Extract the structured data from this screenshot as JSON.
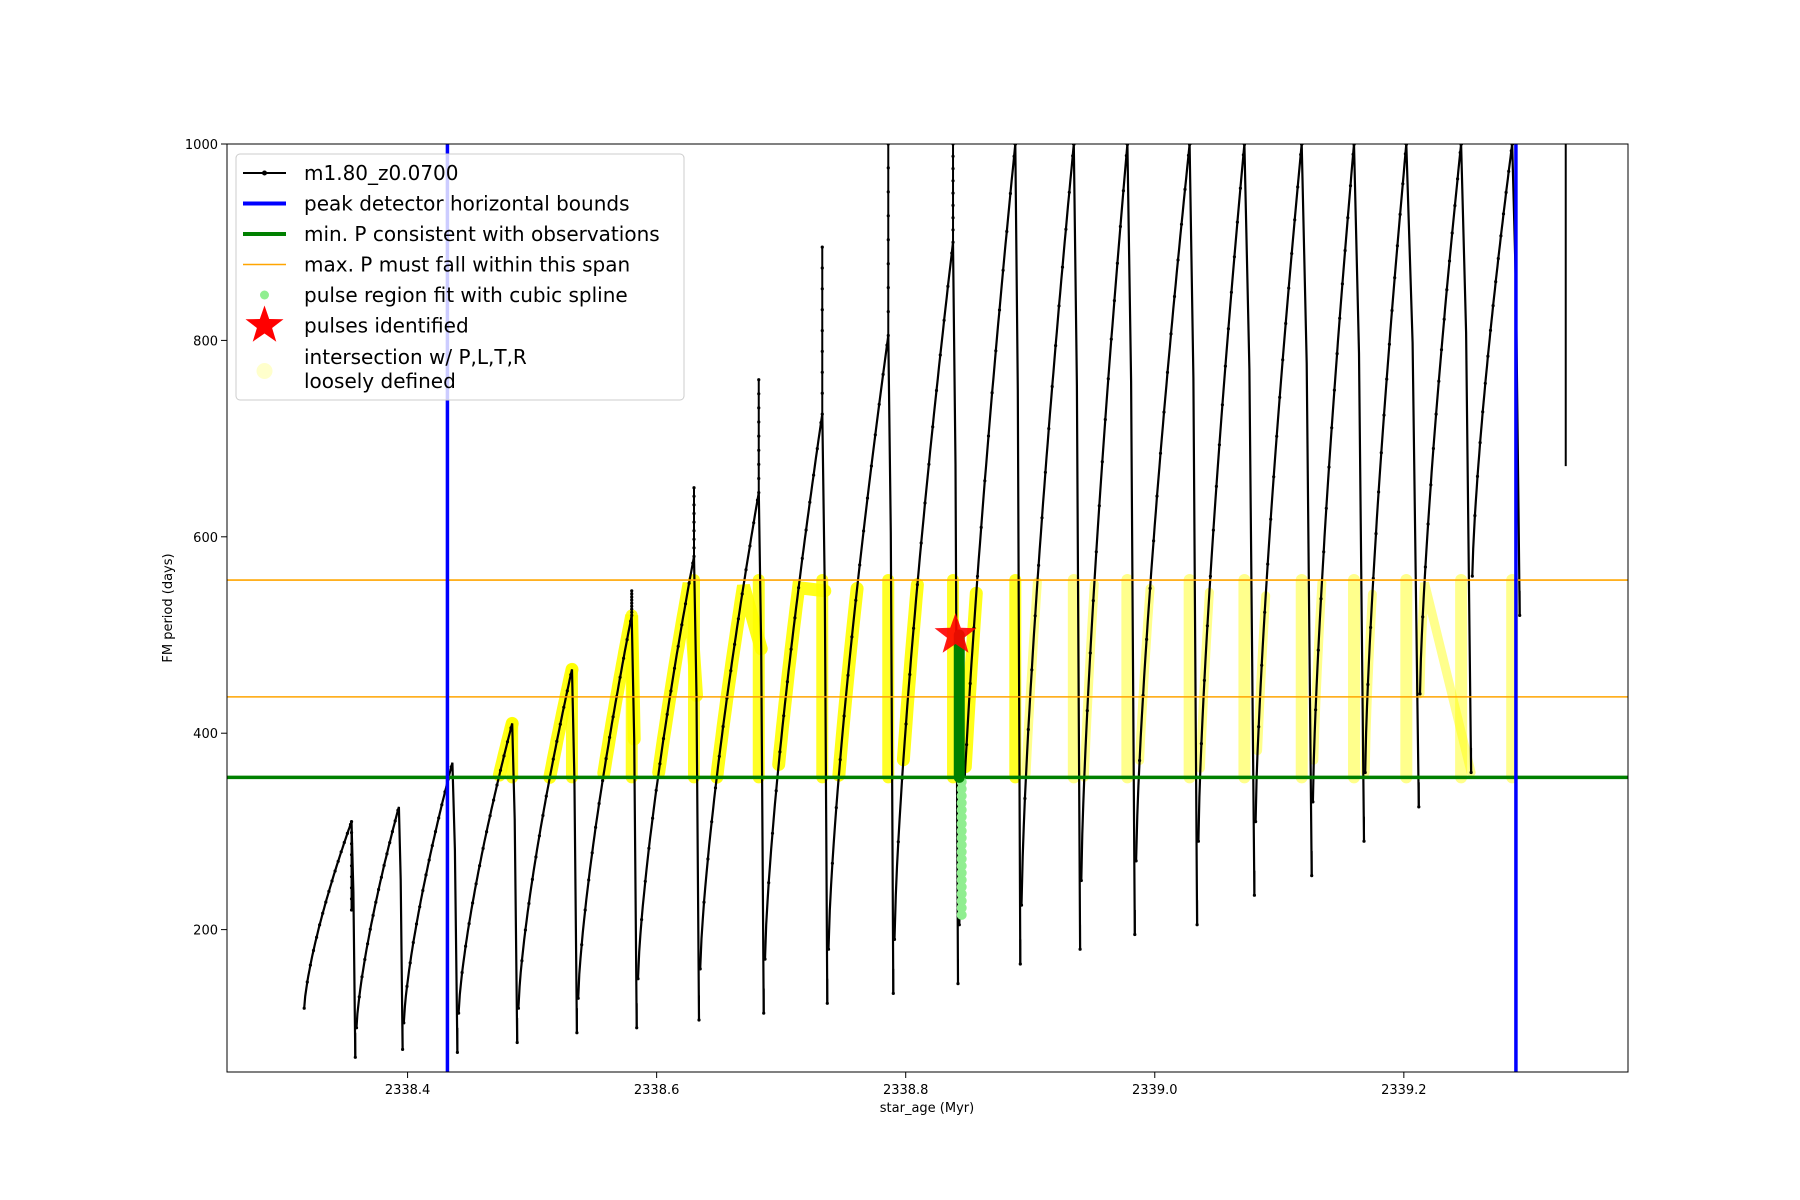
{
  "chart_data": {
    "type": "line",
    "xlabel": "star_age (Myr)",
    "ylabel": "FM period (days)",
    "xlim": [
      2338.255,
      2339.38
    ],
    "ylim": [
      55,
      1000
    ],
    "x_ticks": [
      2338.4,
      2338.6,
      2338.8,
      2339.0,
      2339.2
    ],
    "x_tick_labels": [
      "2338.4",
      "2338.6",
      "2338.8",
      "2339.0",
      "2339.2"
    ],
    "y_ticks": [
      200,
      400,
      600,
      800,
      1000
    ],
    "y_tick_labels": [
      "200",
      "400",
      "600",
      "800",
      "1000"
    ],
    "grid": false,
    "legend_placement": "top-left",
    "colors": {
      "model_track": "#000000",
      "peak_bounds": "#0000ff",
      "min_period": "#008000",
      "max_period_span": "#ffa500",
      "spline_fit": "#90ee90",
      "pulse_star": "#ff0000",
      "intersection": "#ffff00"
    },
    "legend": [
      {
        "label": "m1.80_z0.0700",
        "style": "line-marker",
        "color": "#000000"
      },
      {
        "label": "peak detector horizontal bounds",
        "style": "line-thick",
        "color": "#0000ff"
      },
      {
        "label": "min. P consistent with observations",
        "style": "line-thick",
        "color": "#008000"
      },
      {
        "label": "max. P must fall within this span",
        "style": "line-thin",
        "color": "#ffa500"
      },
      {
        "label": "pulse region fit with cubic spline",
        "style": "dot",
        "color": "#90ee90"
      },
      {
        "label": "pulses identified",
        "style": "star",
        "color": "#ff0000"
      },
      {
        "label_lines": [
          "intersection w/ P,L,T,R",
          "loosely defined"
        ],
        "style": "faint-dot",
        "color": "#ffffcc"
      }
    ],
    "vertical_lines": [
      {
        "name": "peak detector horizontal bounds",
        "x": 2338.432
      },
      {
        "name": "peak detector horizontal bounds",
        "x": 2339.29
      }
    ],
    "horizontal_lines": [
      {
        "name": "min. P consistent with observations",
        "y": 355
      },
      {
        "name": "max. P must fall within this span",
        "y": 437
      },
      {
        "name": "max. P must fall within this span",
        "y": 556
      }
    ],
    "series": [
      {
        "name": "m1.80_z0.0700",
        "cycles": [
          {
            "x_start": 2338.317,
            "x_peak": 2338.355,
            "x_end": 2338.358,
            "y_start": 120,
            "y_peak": 310,
            "y_min": 70,
            "y_spike": 220
          },
          {
            "x_start": 2338.359,
            "x_peak": 2338.393,
            "x_end": 2338.396,
            "y_start": 100,
            "y_peak": 325,
            "y_min": 78,
            "y_spike": null
          },
          {
            "x_start": 2338.397,
            "x_peak": 2338.436,
            "x_end": 2338.44,
            "y_start": 105,
            "y_peak": 370,
            "y_min": 75,
            "y_spike": null
          },
          {
            "x_start": 2338.441,
            "x_peak": 2338.484,
            "x_end": 2338.488,
            "y_start": 115,
            "y_peak": 410,
            "y_min": 85,
            "y_spike": null
          },
          {
            "x_start": 2338.489,
            "x_peak": 2338.532,
            "x_end": 2338.536,
            "y_start": 120,
            "y_peak": 465,
            "y_min": 95,
            "y_spike": null
          },
          {
            "x_start": 2338.537,
            "x_peak": 2338.58,
            "x_end": 2338.584,
            "y_start": 130,
            "y_peak": 520,
            "y_min": 100,
            "y_spike": 545
          },
          {
            "x_start": 2338.585,
            "x_peak": 2338.63,
            "x_end": 2338.634,
            "y_start": 150,
            "y_peak": 580,
            "y_min": 108,
            "y_spike": 650
          },
          {
            "x_start": 2338.635,
            "x_peak": 2338.682,
            "x_end": 2338.686,
            "y_start": 160,
            "y_peak": 645,
            "y_min": 115,
            "y_spike": 760
          },
          {
            "x_start": 2338.687,
            "x_peak": 2338.733,
            "x_end": 2338.737,
            "y_start": 170,
            "y_peak": 725,
            "y_min": 125,
            "y_spike": 895
          },
          {
            "x_start": 2338.738,
            "x_peak": 2338.786,
            "x_end": 2338.79,
            "y_start": 180,
            "y_peak": 805,
            "y_min": 135,
            "y_spike": 1000
          },
          {
            "x_start": 2338.791,
            "x_peak": 2338.838,
            "x_end": 2338.842,
            "y_start": 190,
            "y_peak": 900,
            "y_min": 145,
            "y_spike": 1000
          },
          {
            "x_start": 2338.843,
            "x_peak": 2338.888,
            "x_end": 2338.892,
            "y_start": 205,
            "y_peak": 1000,
            "y_min": 165,
            "y_spike": 1000
          },
          {
            "x_start": 2338.893,
            "x_peak": 2338.935,
            "x_end": 2338.94,
            "y_start": 225,
            "y_peak": 1000,
            "y_min": 180,
            "y_spike": 1000
          },
          {
            "x_start": 2338.941,
            "x_peak": 2338.978,
            "x_end": 2338.984,
            "y_start": 250,
            "y_peak": 1000,
            "y_min": 195,
            "y_spike": 1000
          },
          {
            "x_start": 2338.985,
            "x_peak": 2339.028,
            "x_end": 2339.034,
            "y_start": 270,
            "y_peak": 1000,
            "y_min": 205,
            "y_spike": 1000
          },
          {
            "x_start": 2339.035,
            "x_peak": 2339.072,
            "x_end": 2339.08,
            "y_start": 290,
            "y_peak": 1000,
            "y_min": 235,
            "y_spike": 1000
          },
          {
            "x_start": 2339.081,
            "x_peak": 2339.118,
            "x_end": 2339.126,
            "y_start": 310,
            "y_peak": 1000,
            "y_min": 255,
            "y_spike": 1000
          },
          {
            "x_start": 2339.127,
            "x_peak": 2339.16,
            "x_end": 2339.168,
            "y_start": 330,
            "y_peak": 1000,
            "y_min": 290,
            "y_spike": 1000
          },
          {
            "x_start": 2339.169,
            "x_peak": 2339.202,
            "x_end": 2339.212,
            "y_start": 360,
            "y_peak": 1000,
            "y_min": 325,
            "y_spike": 1000
          },
          {
            "x_start": 2339.213,
            "x_peak": 2339.246,
            "x_end": 2339.254,
            "y_start": 440,
            "y_peak": 1000,
            "y_min": 360,
            "y_spike": 1000
          },
          {
            "x_start": 2339.255,
            "x_peak": 2339.287,
            "x_end": 2339.293,
            "y_start": 560,
            "y_peak": 1000,
            "y_min": 520,
            "y_spike": 1000
          }
        ],
        "tail": {
          "x": 2339.33,
          "y_min": 672,
          "y_max": 1000
        }
      }
    ],
    "spline_fit": {
      "x": 2338.843,
      "y_min": 215,
      "y_max": 500
    },
    "pulses_identified": [
      {
        "x": 2338.84,
        "y": 500
      }
    ]
  }
}
